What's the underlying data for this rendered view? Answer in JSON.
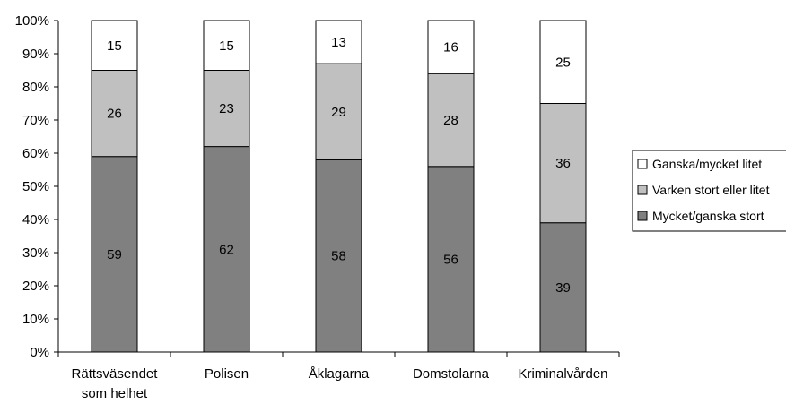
{
  "chart_data": {
    "type": "bar",
    "stacked": true,
    "categories": [
      [
        "Rättsväsendet",
        "som helhet"
      ],
      [
        "Polisen"
      ],
      [
        "Åklagarna"
      ],
      [
        "Domstolarna"
      ],
      [
        "Kriminalvården"
      ]
    ],
    "series": [
      {
        "name": "Mycket/ganska stort",
        "color": "#808080",
        "values": [
          59,
          62,
          58,
          56,
          39
        ]
      },
      {
        "name": "Varken stort eller litet",
        "color": "#c0c0c0",
        "values": [
          26,
          23,
          29,
          28,
          36
        ]
      },
      {
        "name": "Ganska/mycket litet",
        "color": "#ffffff",
        "values": [
          15,
          15,
          13,
          16,
          25
        ]
      }
    ],
    "yticks": [
      "0%",
      "10%",
      "20%",
      "30%",
      "40%",
      "50%",
      "60%",
      "70%",
      "80%",
      "90%",
      "100%"
    ],
    "ylim": [
      0,
      100
    ],
    "title": "",
    "xlabel": "",
    "ylabel": "",
    "legend_position": "right",
    "grid": false
  }
}
